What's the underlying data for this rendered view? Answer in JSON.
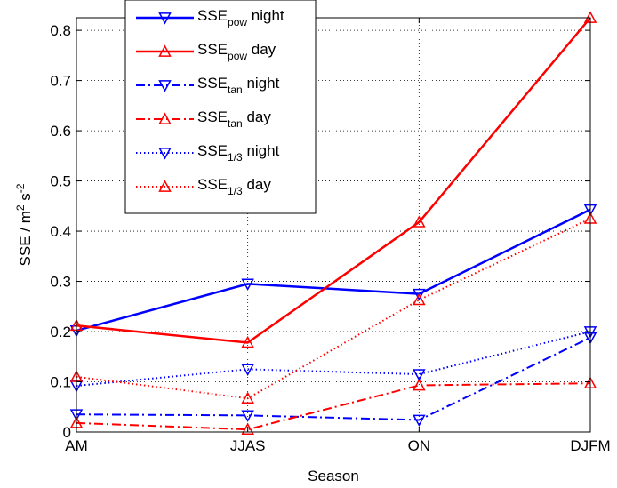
{
  "chart_data": {
    "type": "line",
    "categories": [
      "AM",
      "JJAS",
      "ON",
      "DJFM"
    ],
    "xlabel": "Season",
    "ylabel": {
      "base": "SSE / m",
      "sup1": "2",
      "mid": " s",
      "sup2": "-2"
    },
    "ylim": [
      0,
      0.825
    ],
    "yticks": [
      "0",
      "0.1",
      "0.2",
      "0.3",
      "0.4",
      "0.5",
      "0.6",
      "0.7",
      "0.8"
    ],
    "grid": true,
    "legend_position": "top-left",
    "series": [
      {
        "name_main": "SSE",
        "name_sub": "pow",
        "name_suffix": " night",
        "color": "#0000ff",
        "dash": "solid",
        "marker": "triangle-down",
        "values": [
          0.202,
          0.295,
          0.275,
          0.443
        ]
      },
      {
        "name_main": "SSE",
        "name_sub": "pow",
        "name_suffix": " day",
        "color": "#ff0000",
        "dash": "solid",
        "marker": "triangle-up",
        "values": [
          0.212,
          0.178,
          0.418,
          0.825
        ]
      },
      {
        "name_main": "SSE",
        "name_sub": "tan",
        "name_suffix": " night",
        "color": "#0000ff",
        "dash": "dashdot",
        "marker": "triangle-down",
        "values": [
          0.035,
          0.033,
          0.024,
          0.188
        ]
      },
      {
        "name_main": "SSE",
        "name_sub": "tan",
        "name_suffix": " day",
        "color": "#ff0000",
        "dash": "dashdot",
        "marker": "triangle-up",
        "values": [
          0.018,
          0.005,
          0.093,
          0.097
        ]
      },
      {
        "name_main": "SSE",
        "name_sub": "1/3",
        "name_suffix": " night",
        "color": "#0000ff",
        "dash": "dotted",
        "marker": "triangle-down",
        "values": [
          0.092,
          0.125,
          0.115,
          0.2
        ]
      },
      {
        "name_main": "SSE",
        "name_sub": "1/3",
        "name_suffix": " day",
        "color": "#ff0000",
        "dash": "dotted",
        "marker": "triangle-up",
        "values": [
          0.11,
          0.067,
          0.263,
          0.425
        ]
      }
    ]
  }
}
